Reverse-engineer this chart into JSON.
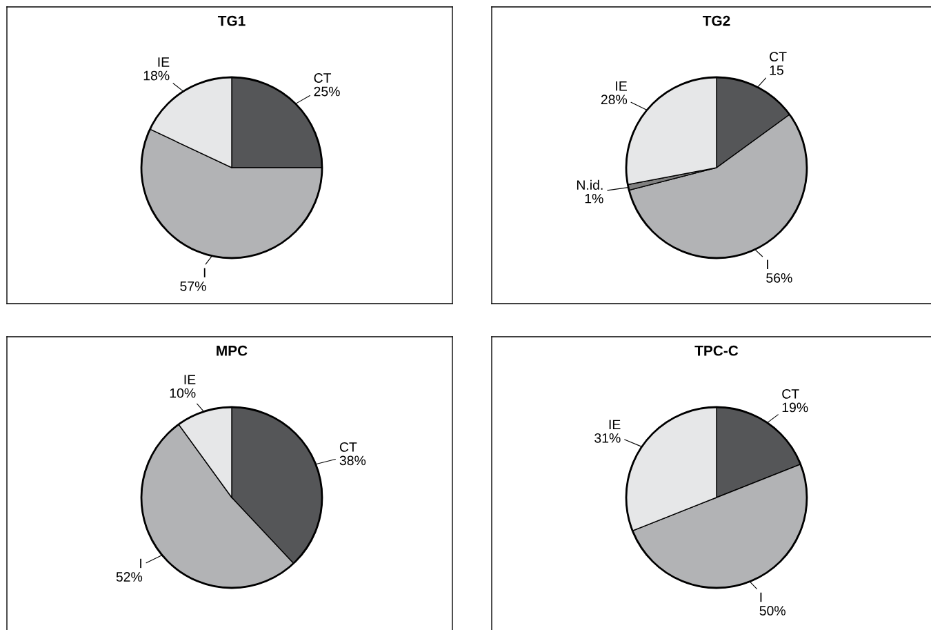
{
  "chart_data": [
    {
      "type": "pie",
      "title": "TG1",
      "categories": [
        "CT",
        "I",
        "IE"
      ],
      "values": [
        25,
        57,
        18
      ],
      "value_labels": [
        "25%",
        "57%",
        "18%"
      ],
      "colors": [
        "#555658",
        "#b2b3b5",
        "#e6e7e8"
      ],
      "legend": false
    },
    {
      "type": "pie",
      "title": "TG2",
      "categories": [
        "CT",
        "I",
        "N.id.",
        "IE"
      ],
      "values": [
        15,
        56,
        1,
        28
      ],
      "value_labels": [
        "15",
        "56%",
        "1%",
        "28%"
      ],
      "colors": [
        "#555658",
        "#b2b3b5",
        "#808080",
        "#e6e7e8"
      ],
      "legend": false
    },
    {
      "type": "pie",
      "title": "MPC",
      "categories": [
        "CT",
        "I",
        "IE"
      ],
      "values": [
        38,
        52,
        10
      ],
      "value_labels": [
        "38%",
        "52%",
        "10%"
      ],
      "colors": [
        "#555658",
        "#b2b3b5",
        "#e6e7e8"
      ],
      "legend": false
    },
    {
      "type": "pie",
      "title": "TPC-C",
      "categories": [
        "CT",
        "I",
        "IE"
      ],
      "values": [
        19,
        50,
        31
      ],
      "value_labels": [
        "19%",
        "50%",
        "31%"
      ],
      "colors": [
        "#555658",
        "#b2b3b5",
        "#e6e7e8"
      ],
      "legend": false
    }
  ]
}
